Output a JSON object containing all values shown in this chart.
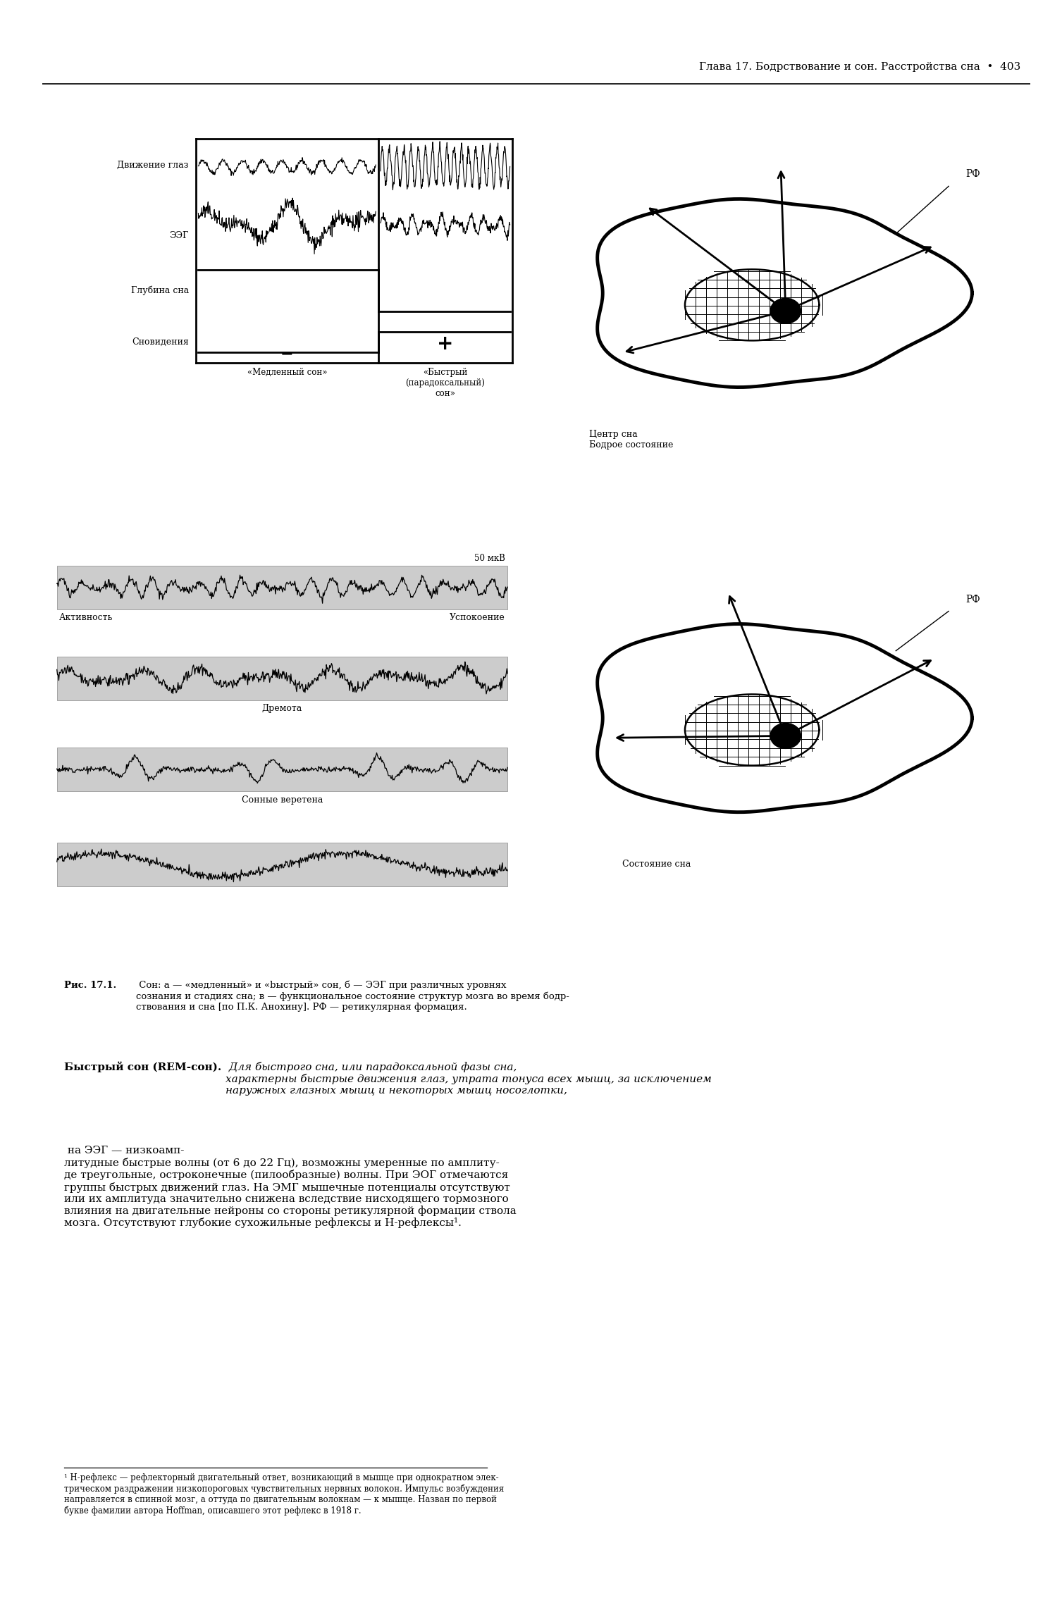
{
  "page_header": "Глава 17. Бодрствование и сон. Расстройства сна  •  403",
  "panel_a_labels_left": [
    "Движение глаз",
    "ЭЭГ",
    "Глубина сна",
    "Сновидения"
  ],
  "panel_a_bottom_labels": [
    "«Медленный сон»",
    "«Быстрый\n(парадоксальный)\nсон»"
  ],
  "panel_a_signs": [
    "−",
    "+"
  ],
  "panel_b_labels": [
    "Активность",
    "Успокоение",
    "50 мкВ",
    "Дремота",
    "Сонные веретена"
  ],
  "panel_c_wake_label1": "Центр сна",
  "panel_c_wake_label2": "Бодрое состояние",
  "panel_c_sleep_label": "Состояние сна",
  "panel_c_rf_label": "РФ",
  "fig_caption_bold": "Рис. 17.1.",
  "fig_caption_rest": " Сон: а — «медленный» и «bыстрый» сон, б — ЭЭГ при различных уровнях\nсознания и стадиях сна; в — функциональное состояние структур мозга во время бодр-\nствования и сна [по П.К. Анохину]. РФ — ретикулярная формация.",
  "main_text_bold": "Быстрый сон (REM-сон).",
  "main_text_italic": " Для быстрого сна, или парадоксальной фазы сна,\nхарактерны быстрые движения глаз, утрата тонуса всех мышц, за исключением\nнаружных глазных мышц и некоторых мышц носоглотки,",
  "main_text_normal": " на ЭЭГ — низкоамп-\nлитудные быстрые волны (от 6 до 22 Гц), возможны умеренные по амплиту-\nде треугольные, остроконечные (пилообразные) волны. При ЭОГ отмечаются\nгруппы быстрых движений глаз. На ЭМГ мышечные потенциалы отсутствуют\nили их амплитуда значительно снижена вследствие нисходящего тормозного\nвлияния на двигательные нейроны со стороны ретикулярной формации ствола\nмозга. Отсутствуют глубокие сухожильные рефлексы и Н-рефлексы¹.",
  "footnote": "¹ Н-рефлекс — рефлекторный двигательный ответ, возникающий в мышце при однократном элек-\nтрическом раздражении низкопороговых чувствительных нервных волокон. Импульс возбуждения\nнаправляется в спинной мозг, а оттуда по двигательным волокнам — к мышце. Назван по первой\nбукве фамилии автора Hoffman, описавшего этот рефлекс в 1918 г.",
  "bg_color": "#ffffff",
  "text_color": "#000000"
}
